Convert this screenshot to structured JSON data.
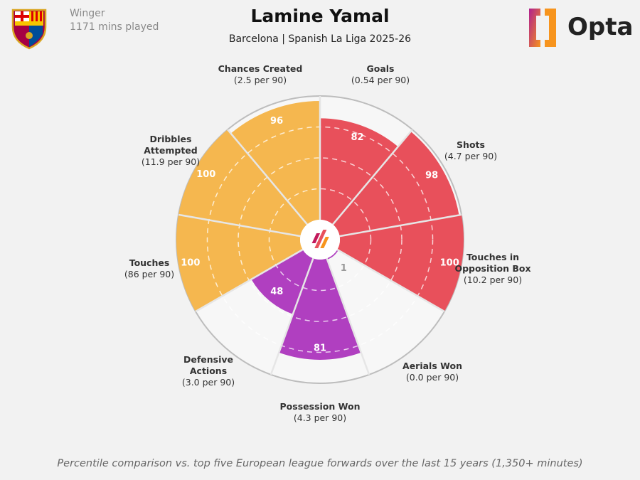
{
  "header": {
    "position": "Winger",
    "minutes": "1171 mins played",
    "title": "Lamine Yamal",
    "subtitle": "Barcelona | Spanish La Liga 2025-26",
    "brand": "Opta",
    "club_crest": "FCB"
  },
  "chart_data": {
    "type": "radar-pizza",
    "range": [
      0,
      100
    ],
    "rings": [
      25,
      50,
      75,
      100
    ],
    "categories": [
      {
        "name": "Goals",
        "per90": "(0.54 per 90)",
        "value": 82,
        "group": "attack"
      },
      {
        "name": "Shots",
        "per90": "(4.7 per 90)",
        "value": 98,
        "group": "attack"
      },
      {
        "name": "Touches in Opposition Box",
        "name_lines": [
          "Touches in",
          "Opposition Box"
        ],
        "per90": "(10.2 per 90)",
        "value": 100,
        "group": "attack"
      },
      {
        "name": "Aerials Won",
        "per90": "(0.0 per 90)",
        "value": 1,
        "group": "defence"
      },
      {
        "name": "Possession Won",
        "per90": "(4.3 per 90)",
        "value": 81,
        "group": "defence"
      },
      {
        "name": "Defensive Actions",
        "name_lines": [
          "Defensive",
          "Actions"
        ],
        "per90": "(3.0 per 90)",
        "value": 48,
        "group": "defence"
      },
      {
        "name": "Touches",
        "per90": "(86 per 90)",
        "value": 100,
        "group": "possession"
      },
      {
        "name": "Dribbles Attempted",
        "name_lines": [
          "Dribbles",
          "Attempted"
        ],
        "per90": "(11.9 per 90)",
        "value": 100,
        "group": "possession"
      },
      {
        "name": "Chances Created",
        "per90": "(2.5 per 90)",
        "value": 96,
        "group": "possession"
      }
    ],
    "colors": {
      "attack": "#e8505b",
      "possession": "#f5b74f",
      "defence": "#b03fc0"
    }
  },
  "footer": "Percentile comparison vs. top five European league forwards over the last 15 years (1,350+ minutes)"
}
